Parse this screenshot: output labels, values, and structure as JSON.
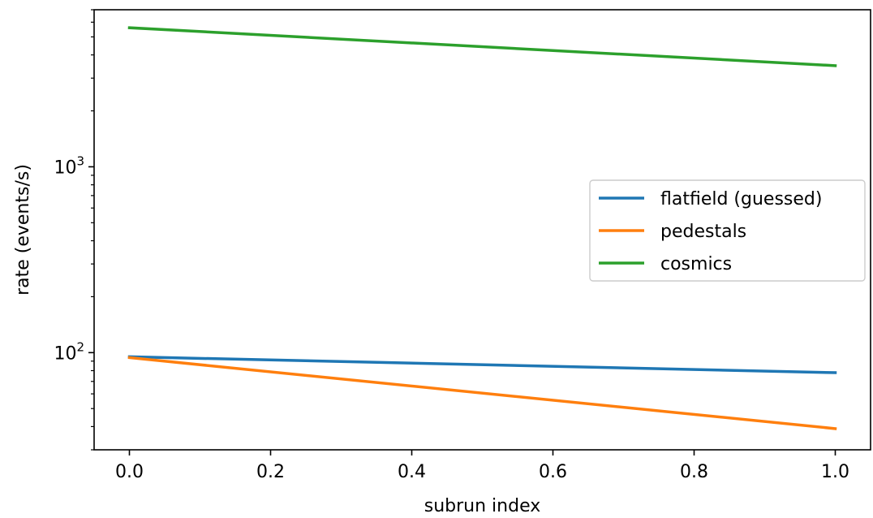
{
  "chart_data": {
    "type": "line",
    "xlabel": "subrun index",
    "ylabel": "rate (events/s)",
    "xlim": [
      -0.05,
      1.05
    ],
    "ylim": [
      30,
      7000
    ],
    "yscale": "log",
    "x_ticks": [
      "0.0",
      "0.2",
      "0.4",
      "0.6",
      "0.8",
      "1.0"
    ],
    "y_ticks": [
      {
        "value": 100,
        "base": "10",
        "exp": "2"
      },
      {
        "value": 1000,
        "base": "10",
        "exp": "3"
      }
    ],
    "grid": false,
    "legend_position": "center-right",
    "series": [
      {
        "name": "flatfield (guessed)",
        "color": "#1f77b4",
        "x": [
          0.0,
          1.0
        ],
        "y": [
          95,
          78
        ]
      },
      {
        "name": "pedestals",
        "color": "#ff7f0e",
        "x": [
          0.0,
          1.0
        ],
        "y": [
          94,
          39
        ]
      },
      {
        "name": "cosmics",
        "color": "#2ca02c",
        "x": [
          0.0,
          1.0
        ],
        "y": [
          5600,
          3500
        ]
      }
    ]
  }
}
